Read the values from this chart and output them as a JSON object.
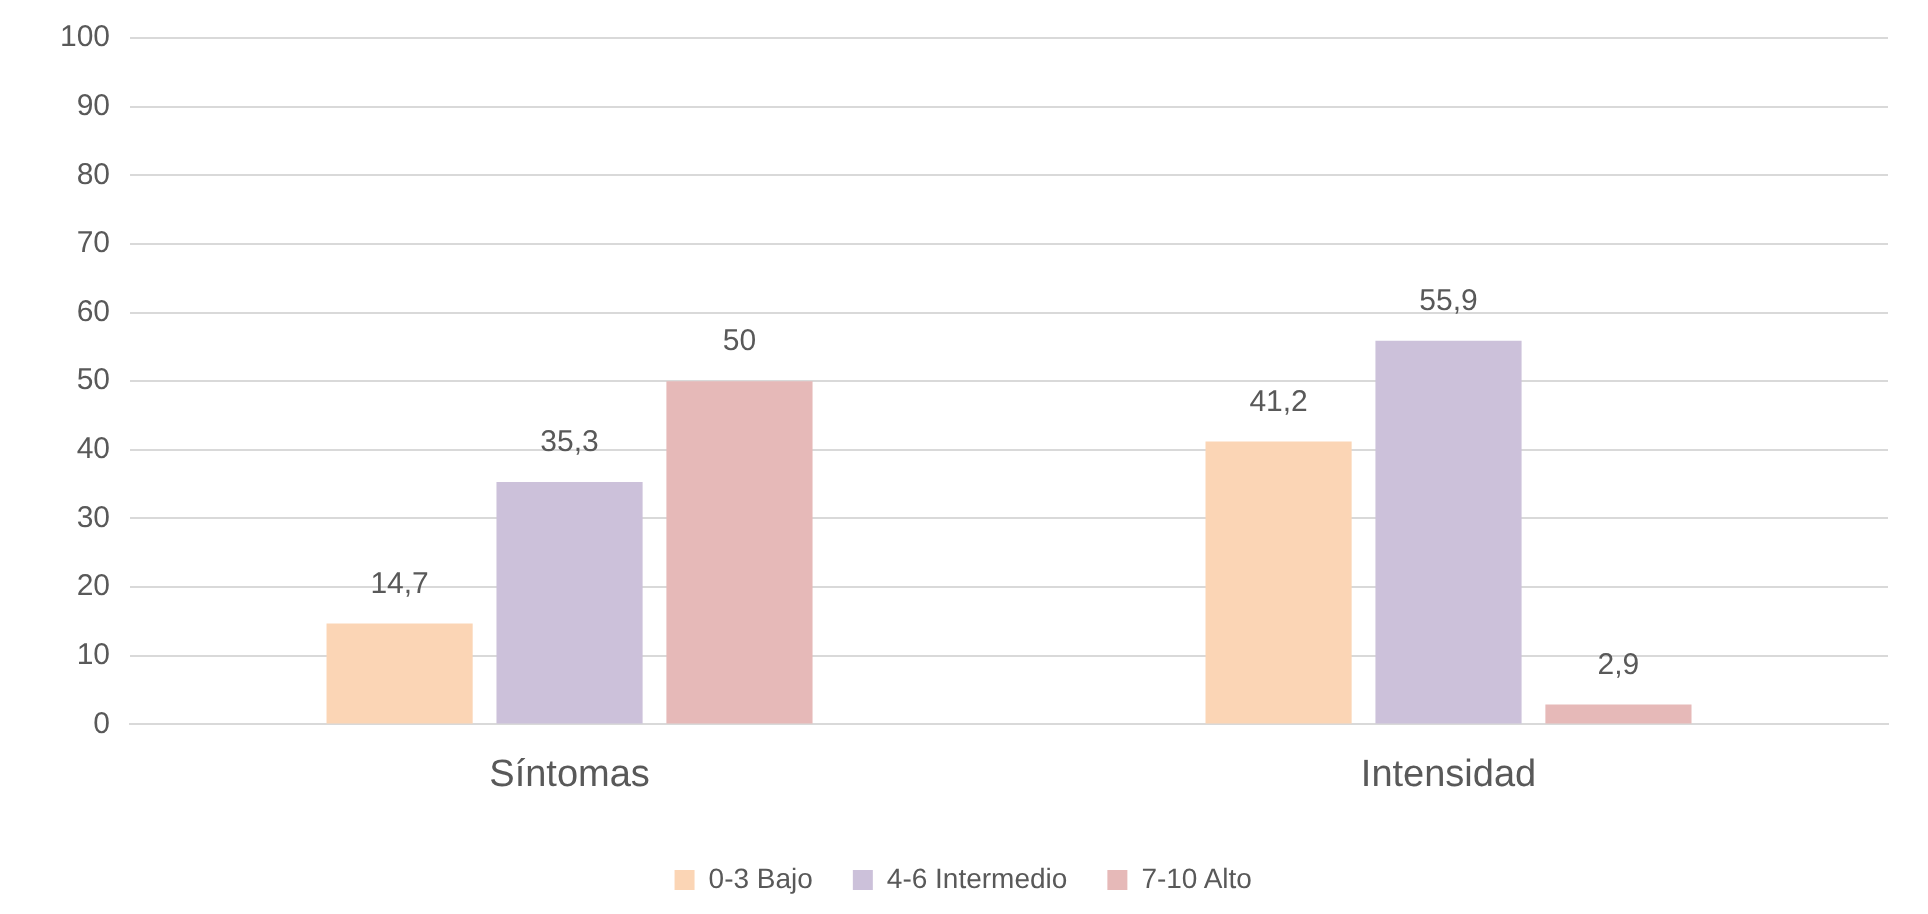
{
  "chart_data": {
    "type": "bar",
    "categories": [
      "Síntomas",
      "Intensidad"
    ],
    "series": [
      {
        "name": "0-3 Bajo",
        "color": "#fbd5b5",
        "values": [
          14.7,
          41.2
        ],
        "value_labels": [
          "14,7",
          "41,2"
        ]
      },
      {
        "name": "4-6 Intermedio",
        "color": "#ccc1da",
        "values": [
          35.3,
          55.9
        ],
        "value_labels": [
          "35,3",
          "55,9"
        ]
      },
      {
        "name": "7-10 Alto",
        "color": "#e6b9b8",
        "values": [
          50,
          2.9
        ],
        "value_labels": [
          "50",
          "2,9"
        ]
      }
    ],
    "ylim": [
      0,
      100
    ],
    "yticks": [
      0,
      10,
      20,
      30,
      40,
      50,
      60,
      70,
      80,
      90,
      100
    ],
    "grid": "y",
    "legend": "bottom"
  }
}
